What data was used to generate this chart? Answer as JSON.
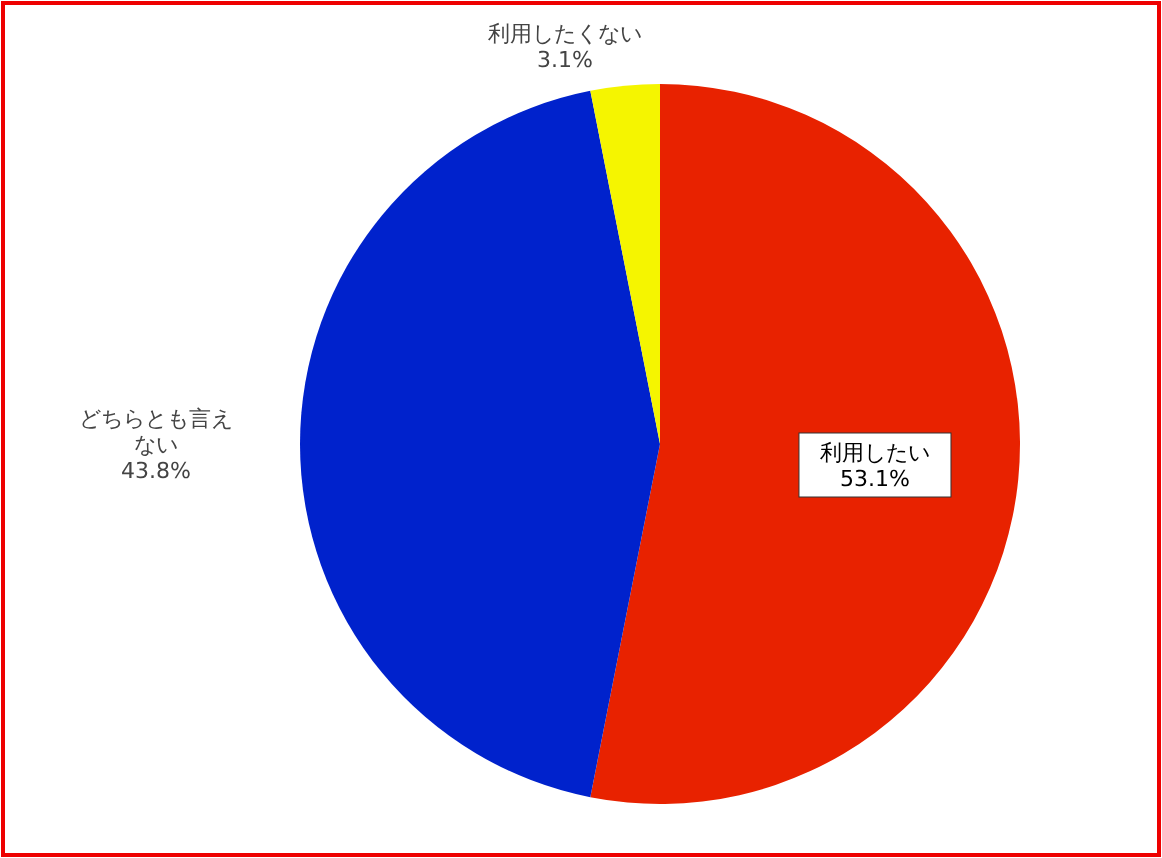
{
  "chart_data": {
    "type": "pie",
    "categories": [
      "利用したい",
      "どちらとも言えない",
      "利用したくない"
    ],
    "values": [
      53.1,
      43.8,
      3.1
    ],
    "colors": [
      "#e82200",
      "#0022cc",
      "#f5f500"
    ],
    "value_labels": [
      "53.1%",
      "43.8%",
      "3.1%"
    ]
  }
}
